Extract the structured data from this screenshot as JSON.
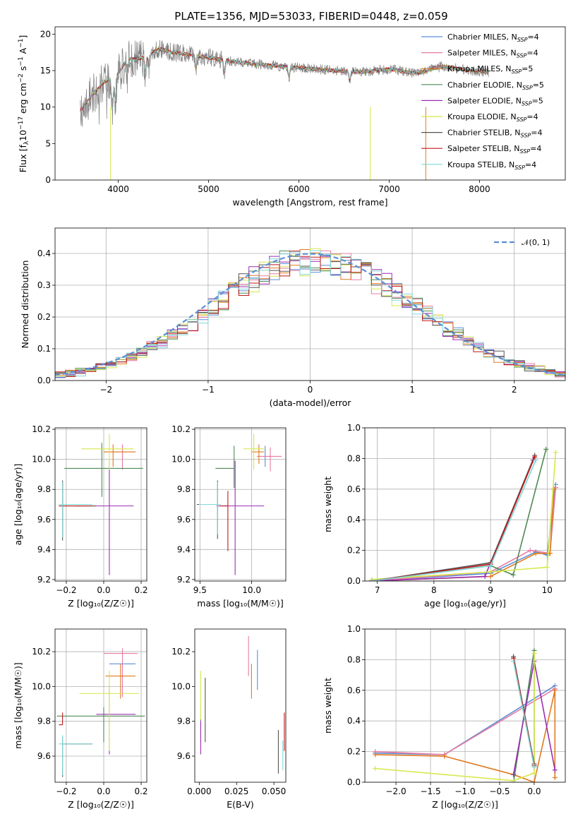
{
  "figure_title": "PLATE=1356, MJD=53033, FIBERID=0448, z=0.059",
  "colors": {
    "chabrier_miles": "#5b8fd6",
    "salpeter_miles": "#e87ba3",
    "kroupa_miles": "#e07a1f",
    "chabrier_elodie": "#4f8a55",
    "salpeter_elodie": "#9a2fb4",
    "kroupa_elodie": "#d6e84a",
    "chabrier_stelib": "#555555",
    "salpeter_stelib": "#c21818",
    "kroupa_stelib": "#7fd6d6",
    "data": "#808080",
    "gaussian": "#5b8fd6"
  },
  "chart_data": [
    {
      "type": "line",
      "panel": "spectrum",
      "title": "PLATE=1356, MJD=53033, FIBERID=0448, z=0.059",
      "xlabel": "wavelength [Angstrom, rest frame]",
      "ylabel": "Flux [f_λ 10^-17 erg cm^-2 s^-1 A^-1]",
      "xlim": [
        3300,
        8950
      ],
      "ylim": [
        0,
        21
      ],
      "xticks": [
        4000,
        5000,
        6000,
        7000,
        8000
      ],
      "yticks": [
        0,
        5,
        10,
        15,
        20
      ],
      "grid": false,
      "legend_position": "upper right",
      "continuum": {
        "x": [
          3580,
          3700,
          3850,
          3950,
          4100,
          4300,
          4450,
          4600,
          4800,
          5000,
          5300,
          5600,
          6000,
          6400,
          6700,
          7000,
          7300,
          7600,
          7900,
          8100
        ],
        "y": [
          9.5,
          11.5,
          13.5,
          13.8,
          16.5,
          16.8,
          18.0,
          17.5,
          17.2,
          16.8,
          16.2,
          15.8,
          15.4,
          15.0,
          14.8,
          15.2,
          14.6,
          15.6,
          15.0,
          14.8
        ]
      },
      "legend_entries": [
        {
          "label": "Chabrier MILES, N",
          "sub": "SSP",
          "suffix": "=4",
          "color_key": "chabrier_miles"
        },
        {
          "label": "Salpeter MILES, N",
          "sub": "SSP",
          "suffix": "=4",
          "color_key": "salpeter_miles"
        },
        {
          "label": "Kroupa MILES, N",
          "sub": "SSP",
          "suffix": "=5",
          "color_key": "kroupa_miles"
        },
        {
          "label": "Chabrier ELODIE, N",
          "sub": "SSP",
          "suffix": "=5",
          "color_key": "chabrier_elodie"
        },
        {
          "label": "Salpeter ELODIE, N",
          "sub": "SSP",
          "suffix": "=5",
          "color_key": "salpeter_elodie"
        },
        {
          "label": "Kroupa ELODIE, N",
          "sub": "SSP",
          "suffix": "=4",
          "color_key": "kroupa_elodie"
        },
        {
          "label": "Chabrier STELIB, N",
          "sub": "SSP",
          "suffix": "=4",
          "color_key": "chabrier_stelib"
        },
        {
          "label": "Salpeter STELIB, N",
          "sub": "SSP",
          "suffix": "=4",
          "color_key": "salpeter_stelib"
        },
        {
          "label": "Kroupa STELIB, N",
          "sub": "SSP",
          "suffix": "=4",
          "color_key": "kroupa_stelib"
        }
      ]
    },
    {
      "type": "line",
      "panel": "residuals",
      "xlabel": "(data-model)/error",
      "ylabel": "Normed distribution",
      "xlim": [
        -2.5,
        2.5
      ],
      "ylim": [
        0,
        0.48
      ],
      "xticks": [
        -2,
        -1,
        0,
        1,
        2
      ],
      "yticks": [
        0.0,
        0.1,
        0.2,
        0.3,
        0.4
      ],
      "grid": true,
      "legend_position": "upper right",
      "legend_label": "𝒩(0, 1)",
      "bin_width": 0.1
    },
    {
      "type": "scatter",
      "panel": "age_vs_Z",
      "xlabel": "Z [log10(Z/Z☉)]",
      "ylabel": "age [log10(age/yr)]",
      "xlim": [
        -0.26,
        0.23
      ],
      "ylim": [
        9.19,
        10.21
      ],
      "xticks": [
        -0.2,
        0.0,
        0.2
      ],
      "yticks": [
        9.2,
        9.4,
        9.6,
        9.8,
        10.0,
        10.2
      ],
      "grid": true,
      "points": [
        {
          "x": 0.1,
          "y": 10.02,
          "xerr": [
            0.0,
            0.0
          ],
          "yerr": [
            0.07,
            0.07
          ],
          "color_key": "chabrier_miles"
        },
        {
          "x": 0.1,
          "y": 10.05,
          "xerr": [
            0.1,
            0.07
          ],
          "yerr": [
            0.12,
            0.05
          ],
          "color_key": "salpeter_miles"
        },
        {
          "x": 0.05,
          "y": 10.05,
          "xerr": [
            0.05,
            0.12
          ],
          "yerr": [
            0.1,
            0.05
          ],
          "color_key": "kroupa_miles"
        },
        {
          "x": -0.01,
          "y": 9.94,
          "xerr": [
            0.2,
            0.22
          ],
          "yerr": [
            0.19,
            0.17
          ],
          "color_key": "chabrier_elodie"
        },
        {
          "x": 0.03,
          "y": 9.69,
          "xerr": [
            0.18,
            0.13
          ],
          "yerr": [
            0.46,
            0.3
          ],
          "color_key": "salpeter_elodie"
        },
        {
          "x": 0.03,
          "y": 10.07,
          "xerr": [
            0.15,
            0.13
          ],
          "yerr": [
            0.14,
            0.1
          ],
          "color_key": "kroupa_elodie"
        },
        {
          "x": -0.22,
          "y": 9.69,
          "xerr": [
            0.02,
            0.18
          ],
          "yerr": [
            0.23,
            0.17
          ],
          "color_key": "chabrier_stelib"
        },
        {
          "x": -0.22,
          "y": 9.69,
          "xerr": [
            0.02,
            0.16
          ],
          "yerr": [
            0.21,
            0.16
          ],
          "color_key": "salpeter_stelib"
        },
        {
          "x": -0.22,
          "y": 9.7,
          "xerr": [
            0.02,
            0.16
          ],
          "yerr": [
            0.22,
            0.15
          ],
          "color_key": "kroupa_stelib"
        }
      ]
    },
    {
      "type": "scatter",
      "panel": "age_vs_mass",
      "xlabel": "mass [log10(M/M☉)]",
      "ylabel": "",
      "xlim": [
        9.45,
        10.33
      ],
      "ylim": [
        9.19,
        10.21
      ],
      "xticks": [
        9.5,
        10.0
      ],
      "yticks": [
        9.2,
        9.4,
        9.6,
        9.8,
        10.0,
        10.2
      ],
      "grid": true,
      "points": [
        {
          "x": 10.13,
          "y": 10.02,
          "xerr": [
            0.0,
            0.0
          ],
          "yerr": [
            0.07,
            0.07
          ],
          "color_key": "chabrier_miles"
        },
        {
          "x": 10.18,
          "y": 10.02,
          "xerr": [
            0.13,
            0.11
          ],
          "yerr": [
            0.1,
            0.06
          ],
          "color_key": "salpeter_miles"
        },
        {
          "x": 10.07,
          "y": 10.05,
          "xerr": [
            0.07,
            0.05
          ],
          "yerr": [
            0.08,
            0.05
          ],
          "color_key": "kroupa_miles"
        },
        {
          "x": 9.83,
          "y": 9.94,
          "xerr": [
            0.18,
            0.0
          ],
          "yerr": [
            0.13,
            0.15
          ],
          "color_key": "chabrier_elodie"
        },
        {
          "x": 9.84,
          "y": 9.69,
          "xerr": [
            0.18,
            0.28
          ],
          "yerr": [
            0.46,
            0.3
          ],
          "color_key": "salpeter_elodie"
        },
        {
          "x": 10.02,
          "y": 10.07,
          "xerr": [
            0.1,
            0.1
          ],
          "yerr": [
            0.14,
            0.1
          ],
          "color_key": "kroupa_elodie"
        },
        {
          "x": 9.67,
          "y": 9.7,
          "xerr": [
            0.2,
            0.03
          ],
          "yerr": [
            0.23,
            0.16
          ],
          "color_key": "chabrier_stelib"
        },
        {
          "x": 9.77,
          "y": 9.69,
          "xerr": [
            0.08,
            0.0
          ],
          "yerr": [
            0.3,
            0.1
          ],
          "color_key": "salpeter_stelib"
        },
        {
          "x": 9.67,
          "y": 9.7,
          "xerr": [
            0.18,
            0.03
          ],
          "yerr": [
            0.2,
            0.15
          ],
          "color_key": "kroupa_stelib"
        }
      ]
    },
    {
      "type": "line",
      "panel": "mass_weight_vs_age",
      "xlabel": "age [log10(age/yr)]",
      "ylabel": "mass weight",
      "xlim": [
        6.78,
        10.32
      ],
      "ylim": [
        0,
        1.0
      ],
      "xticks": [
        7,
        8,
        9,
        10
      ],
      "yticks": [
        0.0,
        0.2,
        0.4,
        0.6,
        0.8,
        1.0
      ],
      "grid": true,
      "series": [
        {
          "color_key": "chabrier_miles",
          "x": [
            6.9,
            9.0,
            9.8,
            10.0,
            10.15
          ],
          "y": [
            0.0,
            0.05,
            0.19,
            0.17,
            0.63
          ]
        },
        {
          "color_key": "salpeter_miles",
          "x": [
            6.9,
            9.0,
            9.7,
            10.05,
            10.15
          ],
          "y": [
            0.0,
            0.06,
            0.2,
            0.18,
            0.61
          ]
        },
        {
          "color_key": "kroupa_miles",
          "x": [
            6.9,
            9.0,
            9.8,
            10.05,
            10.12
          ],
          "y": [
            0.0,
            0.03,
            0.18,
            0.18,
            0.6
          ]
        },
        {
          "color_key": "chabrier_elodie",
          "x": [
            6.9,
            9.0,
            9.4,
            9.98
          ],
          "y": [
            0.0,
            0.1,
            0.04,
            0.86
          ]
        },
        {
          "color_key": "salpeter_elodie",
          "x": [
            6.9,
            8.9,
            9.75
          ],
          "y": [
            0.0,
            0.03,
            0.79
          ]
        },
        {
          "color_key": "kroupa_elodie",
          "x": [
            6.9,
            9.0,
            10.0,
            10.15
          ],
          "y": [
            0.01,
            0.06,
            0.09,
            0.84
          ]
        },
        {
          "color_key": "chabrier_stelib",
          "x": [
            6.9,
            9.0,
            9.78
          ],
          "y": [
            0.0,
            0.12,
            0.82
          ]
        },
        {
          "color_key": "salpeter_stelib",
          "x": [
            6.9,
            9.0,
            9.78
          ],
          "y": [
            0.0,
            0.11,
            0.81
          ]
        },
        {
          "color_key": "kroupa_stelib",
          "x": [
            6.9,
            9.0,
            9.8
          ],
          "y": [
            0.0,
            0.1,
            0.79
          ]
        }
      ]
    },
    {
      "type": "scatter",
      "panel": "mass_vs_Z",
      "xlabel": "Z [log10(Z/Z☉)]",
      "ylabel": "mass [log10(M/M☉)]",
      "xlim": [
        -0.26,
        0.23
      ],
      "ylim": [
        9.45,
        10.33
      ],
      "xticks": [
        -0.2,
        0.0,
        0.2
      ],
      "yticks": [
        9.6,
        9.8,
        10.0,
        10.2
      ],
      "grid": true,
      "points": [
        {
          "x": 0.1,
          "y": 10.13,
          "xerr": [
            0.07,
            0.07
          ],
          "yerr": [
            0.02,
            0.0
          ],
          "color_key": "chabrier_miles"
        },
        {
          "x": 0.1,
          "y": 10.19,
          "xerr": [
            0.1,
            0.08
          ],
          "yerr": [
            0.25,
            0.03
          ],
          "color_key": "salpeter_miles"
        },
        {
          "x": 0.09,
          "y": 10.06,
          "xerr": [
            0.08,
            0.08
          ],
          "yerr": [
            0.13,
            0.07
          ],
          "color_key": "kroupa_miles"
        },
        {
          "x": 0.0,
          "y": 9.83,
          "xerr": [
            0.25,
            0.22
          ],
          "yerr": [
            0.15,
            0.05
          ],
          "color_key": "chabrier_elodie"
        },
        {
          "x": 0.03,
          "y": 9.84,
          "xerr": [
            0.07,
            0.14
          ],
          "yerr": [
            0.23,
            0.17
          ],
          "color_key": "salpeter_elodie"
        },
        {
          "x": 0.03,
          "y": 9.96,
          "xerr": [
            0.16,
            0.16
          ],
          "yerr": [
            0.33,
            0.13
          ],
          "color_key": "kroupa_elodie"
        },
        {
          "x": -0.22,
          "y": 9.67,
          "xerr": [
            0.0,
            0.16
          ],
          "yerr": [
            0.19,
            0.04
          ],
          "color_key": "chabrier_stelib"
        },
        {
          "x": -0.22,
          "y": 9.78,
          "xerr": [
            0.02,
            0.0
          ],
          "yerr": [
            0.0,
            0.07
          ],
          "color_key": "salpeter_stelib"
        },
        {
          "x": -0.22,
          "y": 9.67,
          "xerr": [
            0.02,
            0.16
          ],
          "yerr": [
            0.18,
            0.05
          ],
          "color_key": "kroupa_stelib"
        }
      ]
    },
    {
      "type": "scatter",
      "panel": "mass_vs_ebv",
      "xlabel": "E(B-V)",
      "ylabel": "",
      "xlim": [
        -0.003,
        0.058
      ],
      "ylim": [
        9.45,
        10.33
      ],
      "xticks": [
        0.0,
        0.025,
        0.05
      ],
      "yticks": [
        9.6,
        9.8,
        10.0,
        10.2
      ],
      "grid": false,
      "points": [
        {
          "x": 0.039,
          "y": 10.13,
          "yerr": [
            0.15,
            0.08
          ],
          "color_key": "chabrier_miles"
        },
        {
          "x": 0.033,
          "y": 10.19,
          "yerr": [
            0.13,
            0.1
          ],
          "color_key": "salpeter_miles"
        },
        {
          "x": 0.035,
          "y": 10.06,
          "yerr": [
            0.13,
            0.07
          ],
          "color_key": "kroupa_miles"
        },
        {
          "x": 0.001,
          "y": 9.83,
          "yerr": [
            0.15,
            0.05
          ],
          "color_key": "chabrier_elodie"
        },
        {
          "x": 0.001,
          "y": 9.7,
          "yerr": [
            0.09,
            0.1
          ],
          "color_key": "salpeter_elodie"
        },
        {
          "x": 0.001,
          "y": 9.96,
          "yerr": [
            0.15,
            0.13
          ],
          "color_key": "kroupa_elodie"
        },
        {
          "x": 0.004,
          "y": 9.86,
          "yerr": [
            0.18,
            0.19
          ],
          "color_key": "chabrier_stelib"
        },
        {
          "x": 0.053,
          "y": 9.62,
          "yerr": [
            0.12,
            0.13
          ],
          "color_key": "chabrier_stelib"
        },
        {
          "x": 0.057,
          "y": 9.78,
          "yerr": [
            0.15,
            0.07
          ],
          "color_key": "salpeter_stelib"
        },
        {
          "x": 0.056,
          "y": 9.62,
          "yerr": [
            0.1,
            0.07
          ],
          "color_key": "kroupa_stelib"
        }
      ]
    },
    {
      "type": "line",
      "panel": "mass_weight_vs_Z",
      "xlabel": "Z [log10(Z/Z☉)]",
      "ylabel": "mass weight",
      "xlim": [
        -2.45,
        0.45
      ],
      "ylim": [
        0,
        1.0
      ],
      "xticks": [
        -2.0,
        -1.5,
        -1.0,
        -0.5,
        0.0
      ],
      "yticks": [
        0.0,
        0.2,
        0.4,
        0.6,
        0.8,
        1.0
      ],
      "grid": true,
      "series": [
        {
          "color_key": "chabrier_miles",
          "x": [
            -2.3,
            -1.3,
            0.3
          ],
          "y": [
            0.19,
            0.18,
            0.63
          ]
        },
        {
          "color_key": "salpeter_miles",
          "x": [
            -2.3,
            -1.3,
            0.3
          ],
          "y": [
            0.2,
            0.18,
            0.61
          ]
        },
        {
          "color_key": "kroupa_miles",
          "x": [
            -2.3,
            -1.3,
            -0.3,
            0.0,
            0.3,
            0.3
          ],
          "y": [
            0.18,
            0.17,
            0.05,
            0.0,
            0.6,
            0.03
          ]
        },
        {
          "color_key": "chabrier_elodie",
          "x": [
            -0.3,
            0.0,
            0.0
          ],
          "y": [
            0.0,
            0.86,
            0.1
          ]
        },
        {
          "color_key": "salpeter_elodie",
          "x": [
            -0.3,
            0.0,
            0.3
          ],
          "y": [
            0.05,
            0.79,
            0.08
          ]
        },
        {
          "color_key": "kroupa_elodie",
          "x": [
            -2.3,
            -0.3,
            0.0,
            0.0
          ],
          "y": [
            0.09,
            0.01,
            0.06,
            0.84
          ]
        },
        {
          "color_key": "chabrier_stelib",
          "x": [
            -0.3,
            0.0
          ],
          "y": [
            0.82,
            0.12
          ]
        },
        {
          "color_key": "salpeter_stelib",
          "x": [
            -0.3,
            0.0
          ],
          "y": [
            0.81,
            0.11
          ]
        },
        {
          "color_key": "kroupa_stelib",
          "x": [
            -0.3,
            0.0
          ],
          "y": [
            0.79,
            0.1
          ]
        }
      ]
    }
  ]
}
